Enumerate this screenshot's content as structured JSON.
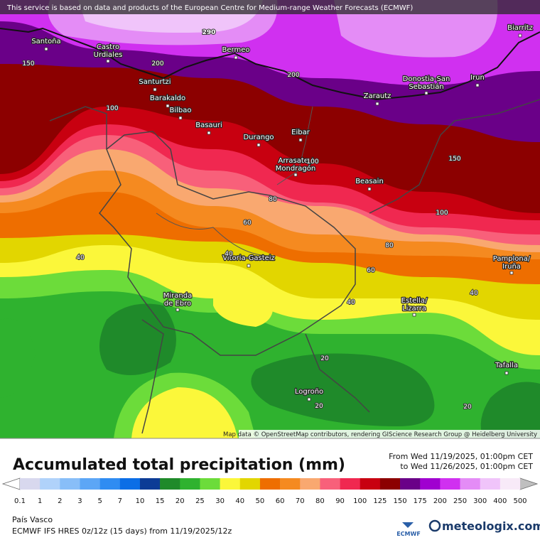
{
  "header": {
    "notice": "This service is based on data and products of the European Centre for Medium-range Weather Forecasts (ECMWF)"
  },
  "map": {
    "places": [
      {
        "lines": [
          "Santoña"
        ]
      },
      {
        "lines": [
          "Castro",
          "Urdiales"
        ]
      },
      {
        "lines": [
          "Santurtzi"
        ]
      },
      {
        "lines": [
          "Barakaldo"
        ]
      },
      {
        "lines": [
          "Bilbao"
        ]
      },
      {
        "lines": [
          "Basauri"
        ]
      },
      {
        "lines": [
          "Bermeo"
        ]
      },
      {
        "lines": [
          "Durango"
        ]
      },
      {
        "lines": [
          "Eibar"
        ]
      },
      {
        "lines": [
          "Zarautz"
        ]
      },
      {
        "lines": [
          "Donostia-San",
          "Sebastián"
        ]
      },
      {
        "lines": [
          "Irun"
        ]
      },
      {
        "lines": [
          "Biarritz"
        ]
      },
      {
        "lines": [
          "Arrasate /",
          "Mondragón"
        ]
      },
      {
        "lines": [
          "Beasain"
        ]
      },
      {
        "lines": [
          "Vitoria-Gasteiz"
        ]
      },
      {
        "lines": [
          "Miranda",
          "de Ebro"
        ]
      },
      {
        "lines": [
          "Estella/",
          "Lizarra"
        ]
      },
      {
        "lines": [
          "Pamplona/",
          "Iruña"
        ]
      },
      {
        "lines": [
          "Tafalla"
        ]
      },
      {
        "lines": [
          "Logroño"
        ]
      }
    ],
    "contours": [
      290,
      150,
      200,
      200,
      100,
      100,
      80,
      60,
      100,
      150,
      80,
      60,
      40,
      40,
      40,
      40,
      20,
      20,
      20
    ],
    "attribution": "Map data © OpenStreetMap contributors, rendering GIScience Research Group @ Heidelberg University"
  },
  "legend": {
    "title": "Accumulated total precipitation (mm)",
    "from": "From Wed 11/19/2025, 01:00pm CET",
    "to": "to Wed 11/26/2025, 01:00pm CET",
    "ticks": [
      0.1,
      1,
      2,
      3,
      5,
      7,
      10,
      15,
      20,
      25,
      30,
      40,
      50,
      60,
      70,
      80,
      90,
      100,
      125,
      150,
      175,
      200,
      250,
      300,
      400,
      500
    ],
    "colors": [
      "#d8d8ee",
      "#b0d2fa",
      "#88bef8",
      "#5ca6f6",
      "#2f8cf2",
      "#0b6ee6",
      "#0c3c96",
      "#1f8a2a",
      "#2fb22f",
      "#6cdc3a",
      "#fbf73a",
      "#e2d600",
      "#ee6e00",
      "#f58a20",
      "#f9a870",
      "#f8607a",
      "#f02850",
      "#c80010",
      "#8c0000",
      "#6a0088",
      "#a000d0",
      "#d030f0",
      "#e48cf6",
      "#f0c4fa",
      "#f8eaf8"
    ],
    "under_color": "#ffffff",
    "over_color": "#bfbfbf"
  },
  "footer": {
    "region": "País Vasco",
    "model": "ECMWF IFS HRES 0z/12z (15 days) from 11/19/2025/12z",
    "ecmwf_logo": "ECMWF",
    "brand": "meteologix.com"
  }
}
